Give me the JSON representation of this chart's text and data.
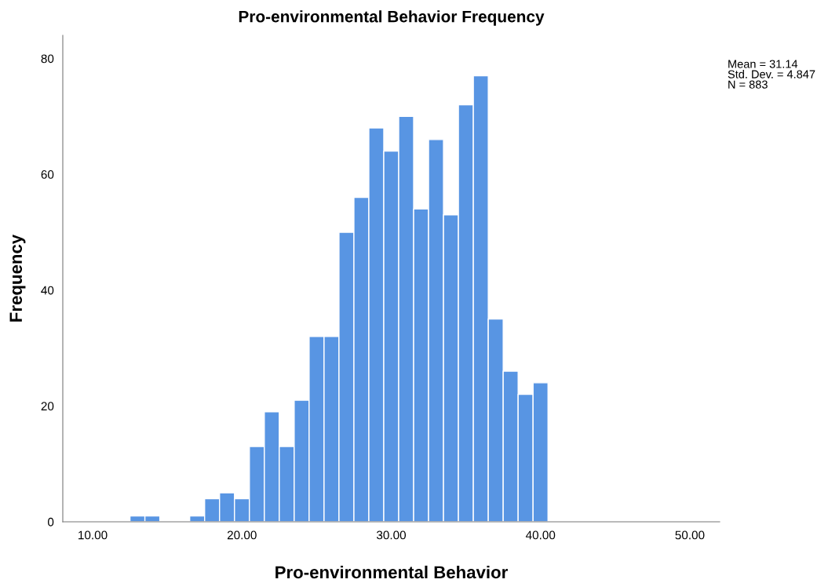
{
  "chart_data": {
    "type": "histogram",
    "title": "Pro-environmental Behavior Frequency",
    "xlabel": "Pro-environmental Behavior",
    "ylabel": "Frequency",
    "bins": [
      12.5,
      13.5,
      14.5,
      15.5,
      16.5,
      17.5,
      18.5,
      19.5,
      20.5,
      21.5,
      22.5,
      23.5,
      24.5,
      25.5,
      26.5,
      27.5,
      28.5,
      29.5,
      30.5,
      31.5,
      32.5,
      33.5,
      34.5,
      35.5,
      36.5,
      37.5,
      38.5,
      39.5,
      40.5
    ],
    "values": [
      1,
      1,
      0,
      0,
      1,
      4,
      5,
      4,
      13,
      19,
      13,
      21,
      32,
      32,
      50,
      56,
      68,
      64,
      70,
      54,
      66,
      53,
      72,
      77,
      35,
      26,
      22,
      24
    ],
    "color": "#5895e3",
    "xlim": [
      8,
      52
    ],
    "ylim": [
      0,
      84
    ],
    "xticks": [
      {
        "value": 10,
        "label": "10.00"
      },
      {
        "value": 20,
        "label": "20.00"
      },
      {
        "value": 30,
        "label": "30.00"
      },
      {
        "value": 40,
        "label": "40.00"
      },
      {
        "value": 50,
        "label": "50.00"
      }
    ],
    "yticks": [
      0,
      20,
      40,
      60,
      80
    ],
    "grid": false,
    "legend": false,
    "annotations": [
      "Mean = 31.14\nStd. Dev. = 4.847\nN = 883"
    ]
  }
}
